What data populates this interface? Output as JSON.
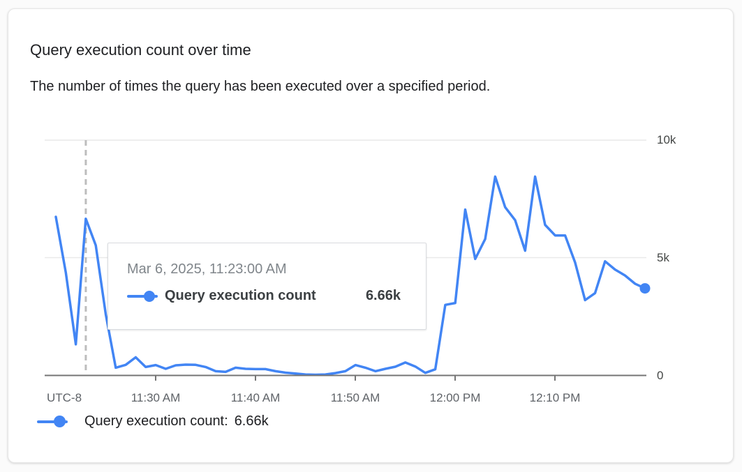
{
  "card": {
    "title": "Query execution count over time",
    "subtitle": "The number of times the query has been executed over a specified period."
  },
  "tooltip": {
    "timestamp": "Mar 6, 2025, 11:23:00 AM",
    "series_label": "Query execution count",
    "value": "6.66k"
  },
  "legend": {
    "label": "Query execution count:",
    "value": "6.66k"
  },
  "chart_data": {
    "type": "line",
    "title": "Query execution count over time",
    "x_axis_prefix_label": "UTC-8",
    "x_tick_labels": [
      "11:30 AM",
      "11:40 AM",
      "11:50 AM",
      "12:00 PM",
      "12:10 PM"
    ],
    "y_tick_labels": [
      "0",
      "5k",
      "10k"
    ],
    "ylim": [
      0,
      10000
    ],
    "grid": "horizontal",
    "legend_position": "bottom",
    "highlighted_point": {
      "index": 3,
      "time": "11:23 AM",
      "value": 6660,
      "display_value": "6.66k"
    },
    "x": [
      "11:20 AM",
      "11:21 AM",
      "11:22 AM",
      "11:23 AM",
      "11:24 AM",
      "11:25 AM",
      "11:26 AM",
      "11:27 AM",
      "11:28 AM",
      "11:29 AM",
      "11:30 AM",
      "11:31 AM",
      "11:32 AM",
      "11:33 AM",
      "11:34 AM",
      "11:35 AM",
      "11:36 AM",
      "11:37 AM",
      "11:38 AM",
      "11:39 AM",
      "11:40 AM",
      "11:41 AM",
      "11:42 AM",
      "11:43 AM",
      "11:44 AM",
      "11:45 AM",
      "11:46 AM",
      "11:47 AM",
      "11:48 AM",
      "11:49 AM",
      "11:50 AM",
      "11:51 AM",
      "11:52 AM",
      "11:53 AM",
      "11:54 AM",
      "11:55 AM",
      "11:56 AM",
      "11:57 AM",
      "11:58 AM",
      "11:59 AM",
      "12:00 PM",
      "12:01 PM",
      "12:02 PM",
      "12:03 PM",
      "12:04 PM",
      "12:05 PM",
      "12:06 PM",
      "12:07 PM",
      "12:08 PM",
      "12:09 PM",
      "12:10 PM",
      "12:11 PM",
      "12:12 PM",
      "12:13 PM",
      "12:14 PM",
      "12:15 PM",
      "12:16 PM",
      "12:17 PM",
      "12:18 PM",
      "12:19 PM"
    ],
    "series": [
      {
        "name": "Query execution count",
        "color": "#4285f4",
        "values": [
          6740,
          4370,
          1320,
          6660,
          5530,
          2600,
          330,
          450,
          770,
          360,
          440,
          280,
          430,
          460,
          450,
          360,
          180,
          150,
          330,
          280,
          270,
          270,
          180,
          120,
          80,
          40,
          30,
          40,
          100,
          180,
          440,
          330,
          180,
          280,
          370,
          550,
          380,
          110,
          260,
          3000,
          3080,
          7050,
          4950,
          5800,
          8450,
          7150,
          6600,
          5300,
          8450,
          6400,
          5950,
          5950,
          4800,
          3200,
          3500,
          4850,
          4500,
          4250,
          3900,
          3700
        ]
      }
    ],
    "colors": {
      "line": "#4285f4",
      "grid": "#e9e9e9",
      "axis": "#757575",
      "crosshair": "#bdbdbd",
      "x_tick_label": "#5f6368",
      "y_tick_label": "#444746"
    }
  }
}
